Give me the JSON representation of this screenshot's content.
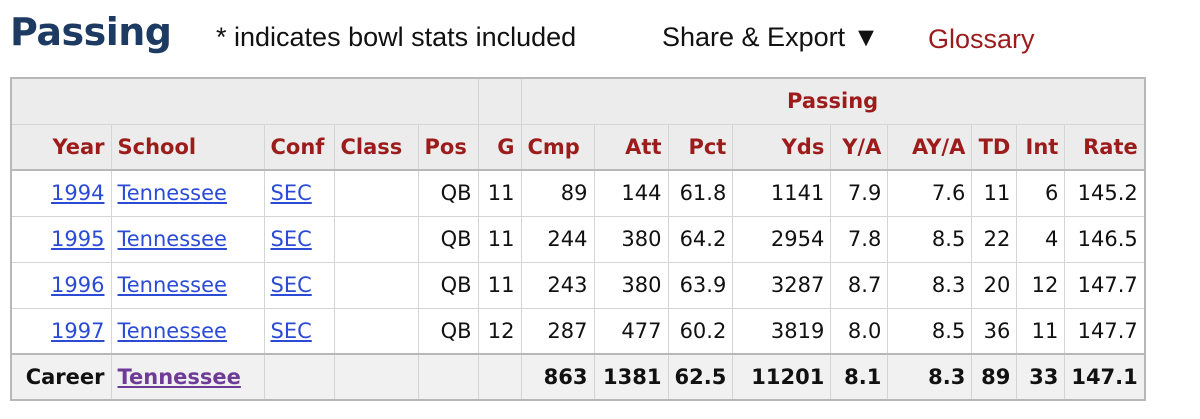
{
  "header": {
    "title": "Passing",
    "note": "* indicates bowl stats included",
    "share_label": "Share & Export ▼",
    "glossary_label": "Glossary"
  },
  "table": {
    "group_header": "Passing",
    "columns": [
      "Year",
      "School",
      "Conf",
      "Class",
      "Pos",
      "G",
      "Cmp",
      "Att",
      "Pct",
      "Yds",
      "Y/A",
      "AY/A",
      "TD",
      "Int",
      "Rate"
    ],
    "rows": [
      {
        "year": "1994",
        "school": "Tennessee",
        "conf": "SEC",
        "class": "",
        "pos": "QB",
        "g": "11",
        "cmp": "89",
        "att": "144",
        "pct": "61.8",
        "yds": "1141",
        "ya": "7.9",
        "aya": "7.6",
        "td": "11",
        "int": "6",
        "rate": "145.2"
      },
      {
        "year": "1995",
        "school": "Tennessee",
        "conf": "SEC",
        "class": "",
        "pos": "QB",
        "g": "11",
        "cmp": "244",
        "att": "380",
        "pct": "64.2",
        "yds": "2954",
        "ya": "7.8",
        "aya": "8.5",
        "td": "22",
        "int": "4",
        "rate": "146.5"
      },
      {
        "year": "1996",
        "school": "Tennessee",
        "conf": "SEC",
        "class": "",
        "pos": "QB",
        "g": "11",
        "cmp": "243",
        "att": "380",
        "pct": "63.9",
        "yds": "3287",
        "ya": "8.7",
        "aya": "8.3",
        "td": "20",
        "int": "12",
        "rate": "147.7"
      },
      {
        "year": "1997",
        "school": "Tennessee",
        "conf": "SEC",
        "class": "",
        "pos": "QB",
        "g": "12",
        "cmp": "287",
        "att": "477",
        "pct": "60.2",
        "yds": "3819",
        "ya": "8.0",
        "aya": "8.5",
        "td": "36",
        "int": "11",
        "rate": "147.7"
      }
    ],
    "career": {
      "label": "Career",
      "school": "Tennessee",
      "cmp": "863",
      "att": "1381",
      "pct": "62.5",
      "yds": "11201",
      "ya": "8.1",
      "aya": "8.3",
      "td": "89",
      "int": "33",
      "rate": "147.1"
    }
  },
  "colors": {
    "title": "#1d3a63",
    "accent_red": "#9c1c1c",
    "link_blue": "#2b4bd6",
    "visited_purple": "#6e3c97"
  }
}
